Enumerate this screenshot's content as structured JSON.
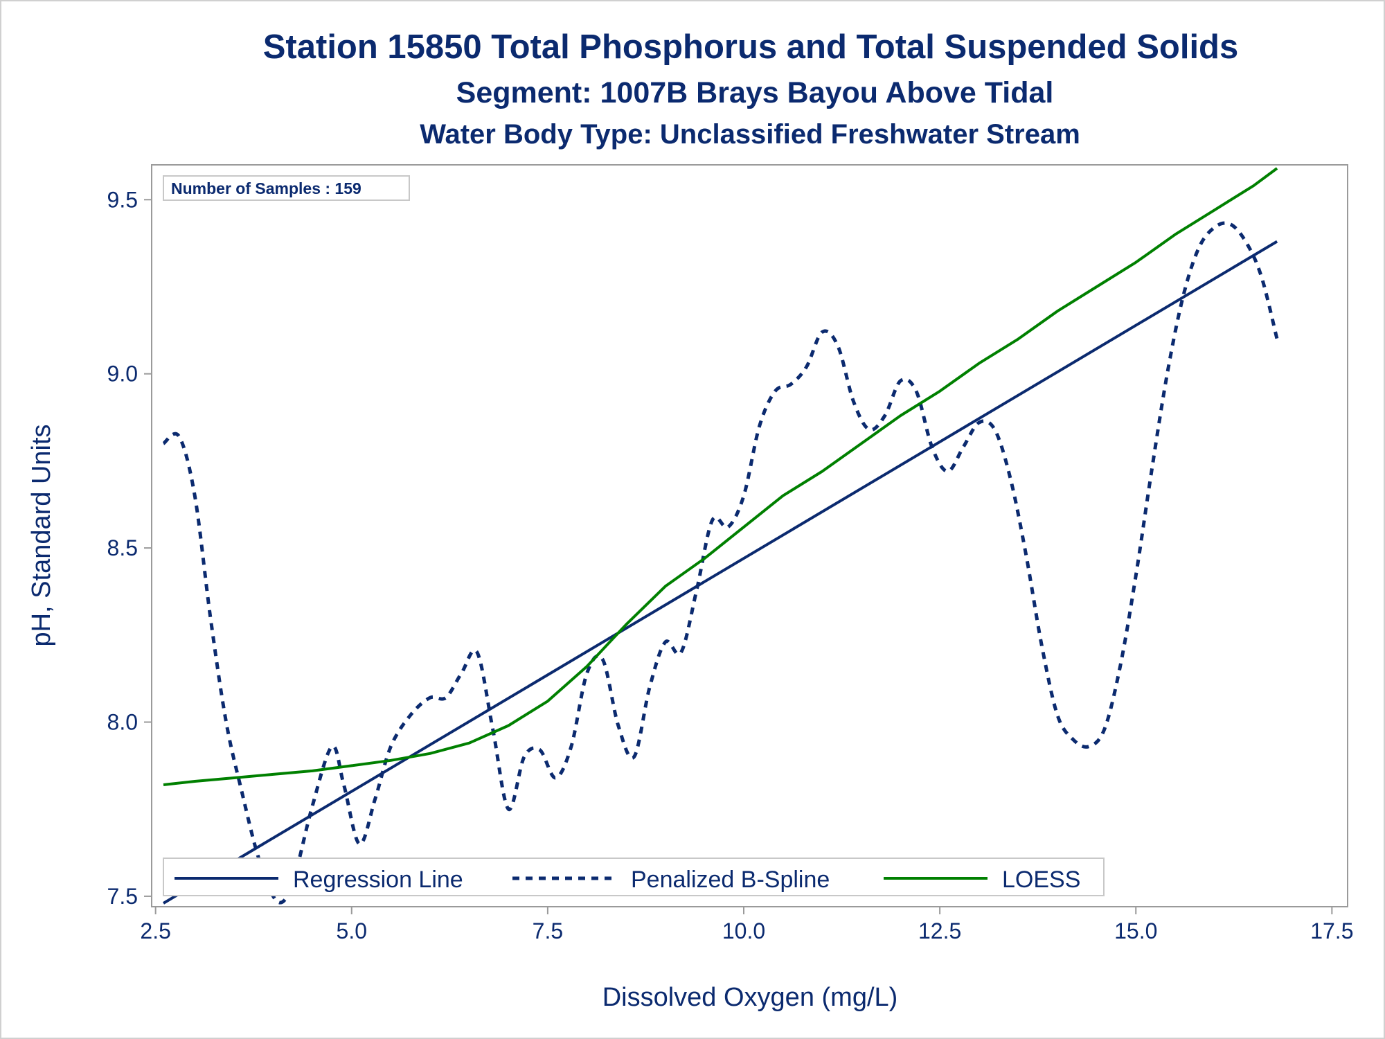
{
  "chart_data": {
    "type": "line",
    "title": "Station 15850  Total Phosphorus and Total Suspended Solids",
    "subtitle": "Segment: 1007B  Brays Bayou Above Tidal",
    "subtitle2": "Water Body Type: Unclassified Freshwater Stream",
    "xlabel": "Dissolved Oxygen (mg/L)",
    "ylabel": "pH, Standard Units",
    "xlim": [
      2.45,
      17.7
    ],
    "ylim": [
      7.47,
      9.6
    ],
    "xticks": [
      2.5,
      5.0,
      7.5,
      10.0,
      12.5,
      15.0,
      17.5
    ],
    "xtick_labels": [
      "2.5",
      "5.0",
      "7.5",
      "10.0",
      "12.5",
      "15.0",
      "17.5"
    ],
    "yticks": [
      7.5,
      8.0,
      8.5,
      9.0,
      9.5
    ],
    "ytick_labels": [
      "7.5",
      "8.0",
      "8.5",
      "9.0",
      "9.5"
    ],
    "grid": false,
    "legend_position": "bottom-left inside",
    "inset_label": "Number of Samples : 159",
    "series": [
      {
        "name": "Regression Line",
        "style": "solid",
        "color": "#0b2a6f",
        "x": [
          2.6,
          16.8
        ],
        "y": [
          7.48,
          9.38
        ]
      },
      {
        "name": "Penalized B-Spline",
        "style": "dashed",
        "color": "#0b2a6f",
        "x": [
          2.6,
          2.8,
          3.0,
          3.2,
          3.4,
          3.6,
          3.8,
          4.0,
          4.15,
          4.3,
          4.5,
          4.75,
          4.9,
          5.1,
          5.3,
          5.5,
          5.75,
          6.0,
          6.2,
          6.4,
          6.6,
          6.8,
          7.0,
          7.2,
          7.4,
          7.6,
          7.8,
          8.0,
          8.2,
          8.4,
          8.6,
          8.8,
          9.0,
          9.2,
          9.4,
          9.6,
          9.8,
          10.0,
          10.2,
          10.4,
          10.6,
          10.8,
          11.0,
          11.2,
          11.4,
          11.6,
          11.8,
          12.0,
          12.2,
          12.4,
          12.6,
          12.8,
          13.0,
          13.2,
          13.4,
          13.6,
          13.8,
          14.0,
          14.2,
          14.4,
          14.6,
          14.8,
          15.0,
          15.2,
          15.4,
          15.6,
          15.8,
          16.0,
          16.2,
          16.4,
          16.6,
          16.8
        ],
        "y": [
          8.8,
          8.82,
          8.65,
          8.3,
          8.0,
          7.8,
          7.62,
          7.5,
          7.49,
          7.58,
          7.76,
          7.93,
          7.82,
          7.65,
          7.78,
          7.93,
          8.02,
          8.07,
          8.07,
          8.14,
          8.2,
          7.98,
          7.75,
          7.9,
          7.92,
          7.84,
          7.93,
          8.14,
          8.18,
          7.99,
          7.9,
          8.1,
          8.23,
          8.2,
          8.38,
          8.58,
          8.56,
          8.65,
          8.85,
          8.95,
          8.97,
          9.02,
          9.12,
          9.08,
          8.92,
          8.84,
          8.88,
          8.98,
          8.95,
          8.79,
          8.72,
          8.79,
          8.86,
          8.84,
          8.7,
          8.48,
          8.22,
          8.02,
          7.95,
          7.93,
          7.98,
          8.16,
          8.42,
          8.72,
          9.0,
          9.22,
          9.36,
          9.42,
          9.43,
          9.38,
          9.28,
          9.1
        ]
      },
      {
        "name": "LOESS",
        "style": "solid",
        "color": "#008000",
        "x": [
          2.6,
          3.0,
          3.5,
          4.0,
          4.5,
          5.0,
          5.5,
          6.0,
          6.5,
          7.0,
          7.5,
          8.0,
          8.5,
          9.0,
          9.5,
          10.0,
          10.5,
          11.0,
          11.5,
          12.0,
          12.5,
          13.0,
          13.5,
          14.0,
          14.5,
          15.0,
          15.5,
          16.0,
          16.5,
          16.8
        ],
        "y": [
          7.82,
          7.83,
          7.84,
          7.85,
          7.86,
          7.875,
          7.89,
          7.91,
          7.94,
          7.99,
          8.06,
          8.16,
          8.28,
          8.39,
          8.47,
          8.56,
          8.65,
          8.72,
          8.8,
          8.88,
          8.95,
          9.03,
          9.1,
          9.18,
          9.25,
          9.32,
          9.4,
          9.47,
          9.54,
          9.59
        ]
      }
    ]
  }
}
